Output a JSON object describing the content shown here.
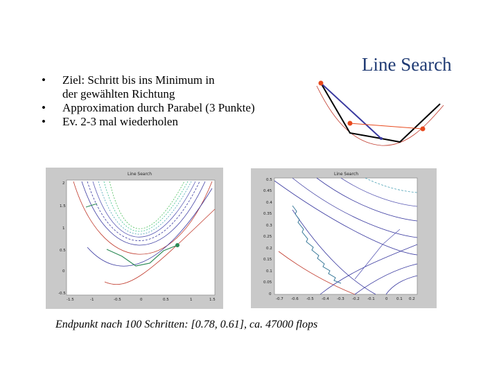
{
  "slide": {
    "title": "Line Search",
    "bullets": [
      {
        "marker": "•",
        "line1": "Ziel: Schritt bis ins Minimum in",
        "line2": "der gewählten Richtung"
      },
      {
        "marker": "•",
        "line1": "Approximation durch Parabel (3 Punkte)",
        "line2": ""
      },
      {
        "marker": "•",
        "line1": "Ev. 2-3 mal wiederholen",
        "line2": ""
      }
    ],
    "caption": "Endpunkt nach 100 Schritten: [0.78, 0.61], ca. 47000 flops"
  },
  "figures": {
    "left": {
      "title": "Line Search",
      "x_ticks": [
        "-1.5",
        "-1",
        "-0.5",
        "0",
        "0.5",
        "1",
        "1.5"
      ],
      "y_ticks": [
        "2",
        "1.5",
        "1",
        "0.5",
        "0",
        "-0.5"
      ]
    },
    "right": {
      "title": "Line Search",
      "x_ticks": [
        "-0.7",
        "-0.6",
        "-0.5",
        "-0.4",
        "-0.3",
        "-0.2",
        "-0.1",
        "0",
        "0.1",
        "0.2"
      ],
      "y_ticks": [
        "0.5",
        "0.45",
        "0.4",
        "0.35",
        "0.3",
        "0.25",
        "0.2",
        "0.15",
        "0.1",
        "0.05",
        "0"
      ]
    }
  },
  "colors": {
    "title": "#1f3a73",
    "point_marker": "#e8491d",
    "search_line": "#3a3aa0",
    "parabola": "#c0392b",
    "panel_bg": "#c9c9c9"
  }
}
